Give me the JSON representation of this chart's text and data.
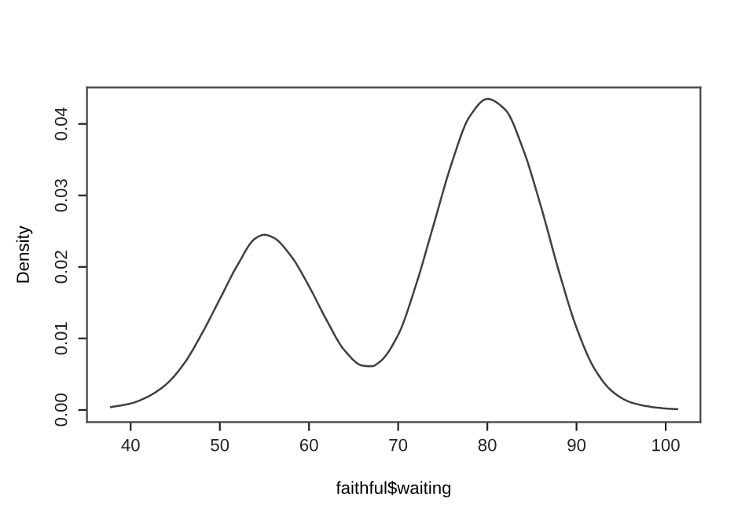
{
  "chart_data": {
    "type": "line",
    "xlabel": "faithful$waiting",
    "ylabel": "Density",
    "xlim": [
      35.1,
      103.9
    ],
    "ylim": [
      -0.0017,
      0.0451
    ],
    "xticks": [
      40,
      50,
      60,
      70,
      80,
      90,
      100
    ],
    "yticks": [
      {
        "value": 0,
        "label": "0.00"
      },
      {
        "value": 0.01,
        "label": "0.01"
      },
      {
        "value": 0.02,
        "label": "0.02"
      },
      {
        "value": 0.03,
        "label": "0.03"
      },
      {
        "value": 0.04,
        "label": "0.04"
      }
    ],
    "grid": false,
    "marker": "none",
    "line_style": "solid",
    "series": [
      {
        "color": "#404040",
        "x": [
          37.8,
          40,
          42,
          44,
          46,
          48,
          50,
          52,
          54,
          55,
          56,
          58,
          60,
          62,
          64,
          66,
          67,
          68,
          70,
          72,
          74,
          76,
          78,
          80,
          82,
          84,
          86,
          88,
          90,
          92,
          94,
          96,
          98,
          100,
          101.3
        ],
        "values": [
          0.0004,
          0.0009,
          0.0019,
          0.0036,
          0.0065,
          0.0107,
          0.0155,
          0.0203,
          0.024,
          0.0245,
          0.0241,
          0.0215,
          0.0173,
          0.0125,
          0.0083,
          0.0062,
          0.0061,
          0.0068,
          0.0105,
          0.0175,
          0.026,
          0.0345,
          0.041,
          0.0435,
          0.042,
          0.0365,
          0.0285,
          0.0195,
          0.0115,
          0.0058,
          0.0026,
          0.0011,
          0.0005,
          0.0002,
          0.0001
        ]
      }
    ]
  }
}
